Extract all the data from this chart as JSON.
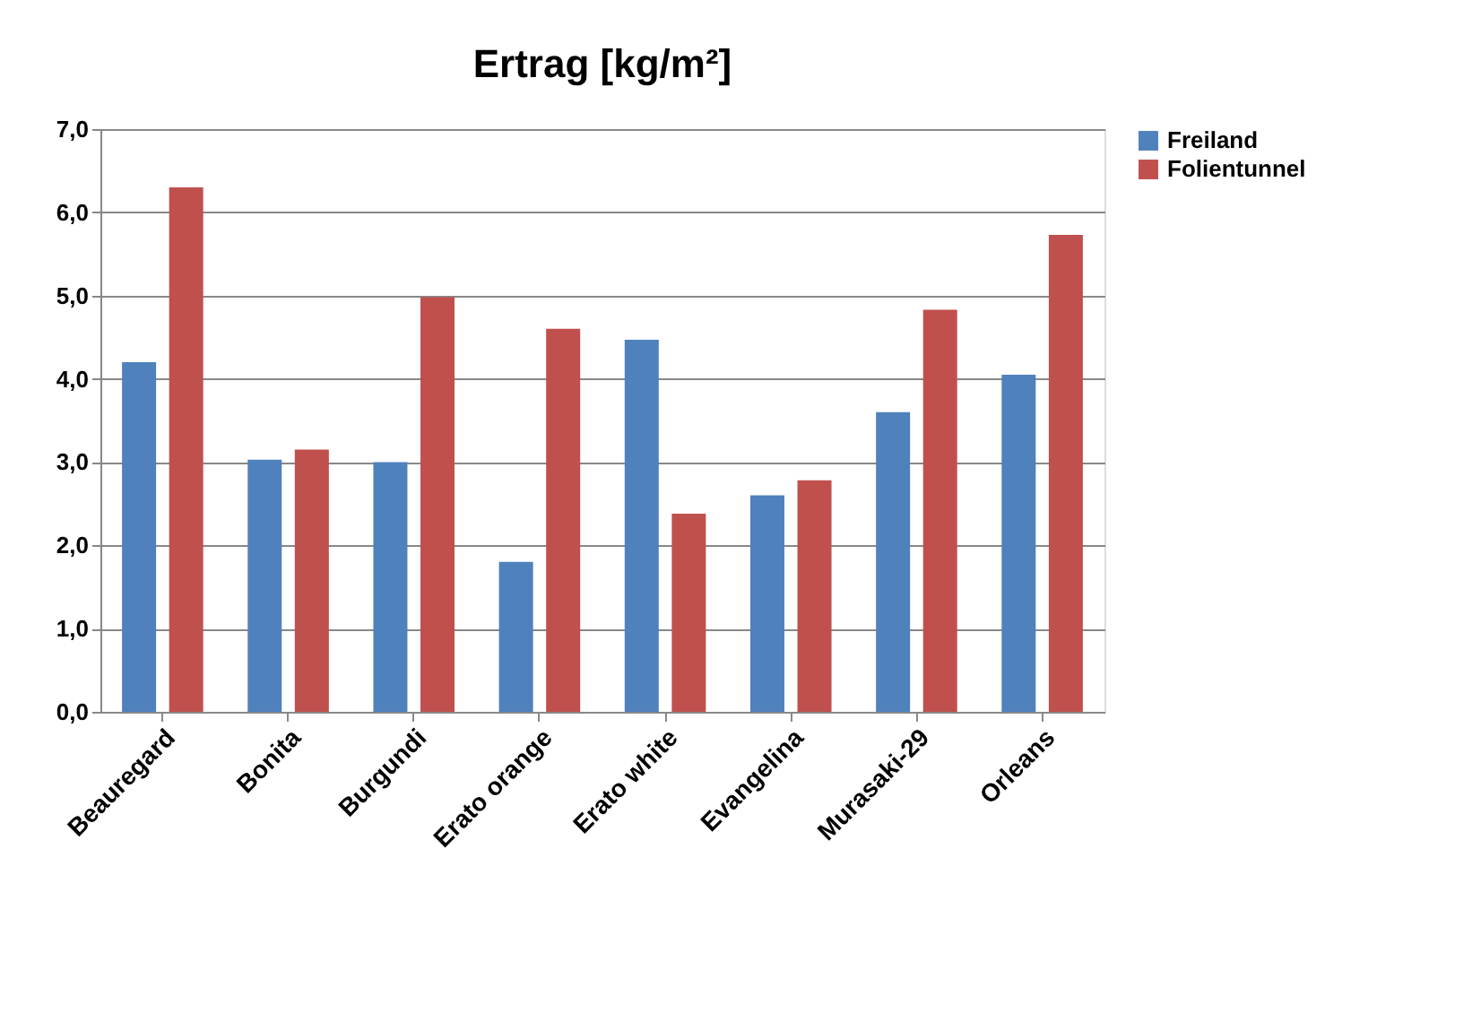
{
  "chart_data": {
    "type": "bar",
    "title": "Ertrag [kg/m²]",
    "categories": [
      "Beauregard",
      "Bonita",
      "Burgundi",
      "Erato orange",
      "Erato white",
      "Evangelina",
      "Murasaki-29",
      "Orleans"
    ],
    "series": [
      {
        "name": "Freiland",
        "color": "#4f81bd",
        "values": [
          4.2,
          3.03,
          3.0,
          1.8,
          4.47,
          2.6,
          3.6,
          4.05
        ]
      },
      {
        "name": "Folientunnel",
        "color": "#c0504d",
        "values": [
          6.3,
          3.15,
          4.98,
          4.6,
          2.38,
          2.78,
          4.83,
          5.73
        ]
      }
    ],
    "ylim": [
      0,
      7
    ],
    "yticks": [
      {
        "value": 0,
        "label": "0,0"
      },
      {
        "value": 1,
        "label": "1,0"
      },
      {
        "value": 2,
        "label": "2,0"
      },
      {
        "value": 3,
        "label": "3,0"
      },
      {
        "value": 4,
        "label": "4,0"
      },
      {
        "value": 5,
        "label": "5,0"
      },
      {
        "value": 6,
        "label": "6,0"
      },
      {
        "value": 7,
        "label": "7,0"
      }
    ],
    "grid": "y",
    "legend": "right"
  }
}
